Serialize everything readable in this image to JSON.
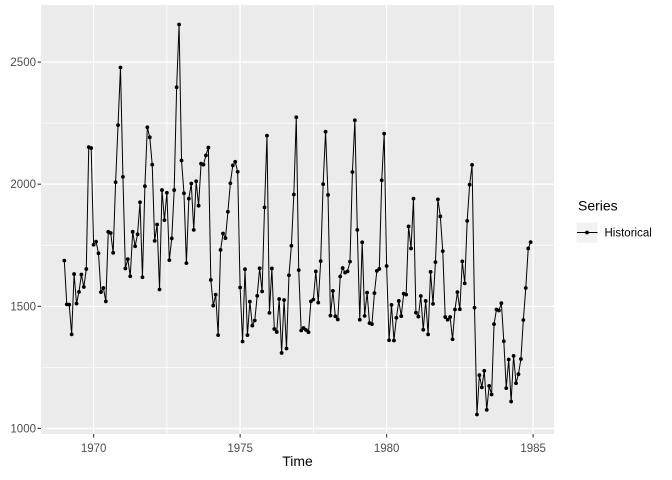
{
  "theme": {
    "page_bg": "#FFFFFF",
    "panel_bg": "#EBEBEB",
    "grid_color": "#FFFFFF",
    "tick_mark_color": "#333333",
    "axis_text_color": "#4D4D4D",
    "title_text_color": "#000000",
    "series_color": "#000000",
    "legend_key_bg": "#F2F2F2"
  },
  "chart_data": {
    "type": "line",
    "title": "",
    "xlabel": "Time",
    "ylabel": "",
    "grid": true,
    "marker": "point",
    "legend": {
      "title": "Series",
      "position": "right",
      "entries": [
        {
          "label": "Historical"
        }
      ]
    },
    "xlim": [
      1968.204,
      1985.713
    ],
    "ylim": [
      977.15,
      2733.85
    ],
    "x_ticks": {
      "labels": [
        "1970",
        "1975",
        "1980",
        "1985"
      ],
      "values": [
        1970,
        1975,
        1980,
        1985
      ],
      "minor": [
        1972.5,
        1977.5,
        1982.5
      ]
    },
    "y_ticks": {
      "labels": [
        "1000",
        "1500",
        "2000",
        "2500"
      ],
      "values": [
        1000,
        1500,
        2000,
        2500
      ],
      "minor": [
        1250,
        1750,
        2250
      ]
    },
    "x_start": 1969,
    "points_per_year": 12,
    "series": [
      {
        "name": "Historical",
        "values": [
          1687,
          1508,
          1507,
          1385,
          1632,
          1511,
          1559,
          1630,
          1579,
          1653,
          2152,
          2148,
          1752,
          1765,
          1717,
          1558,
          1575,
          1520,
          1805,
          1800,
          1719,
          2008,
          2242,
          2478,
          2030,
          1655,
          1693,
          1623,
          1805,
          1746,
          1795,
          1926,
          1619,
          1992,
          2233,
          2192,
          2080,
          1768,
          1835,
          1569,
          1976,
          1853,
          1965,
          1689,
          1778,
          1976,
          2397,
          2654,
          2097,
          1963,
          1677,
          1941,
          2003,
          1813,
          2012,
          1912,
          2084,
          2080,
          2118,
          2150,
          1608,
          1503,
          1548,
          1382,
          1731,
          1798,
          1779,
          1887,
          2004,
          2077,
          2092,
          2051,
          1577,
          1356,
          1652,
          1382,
          1519,
          1421,
          1442,
          1543,
          1656,
          1561,
          1905,
          2199,
          1473,
          1655,
          1407,
          1395,
          1530,
          1309,
          1526,
          1327,
          1627,
          1748,
          1958,
          2274,
          1648,
          1401,
          1411,
          1403,
          1394,
          1520,
          1528,
          1643,
          1515,
          1685,
          2000,
          2215,
          1956,
          1462,
          1563,
          1459,
          1446,
          1622,
          1657,
          1638,
          1643,
          1683,
          2050,
          2262,
          1813,
          1445,
          1762,
          1461,
          1556,
          1431,
          1427,
          1554,
          1645,
          1653,
          2016,
          2207,
          1665,
          1361,
          1506,
          1360,
          1453,
          1522,
          1460,
          1552,
          1548,
          1827,
          1737,
          1941,
          1474,
          1458,
          1542,
          1404,
          1522,
          1385,
          1641,
          1510,
          1681,
          1938,
          1868,
          1726,
          1456,
          1445,
          1456,
          1365,
          1487,
          1558,
          1488,
          1684,
          1594,
          1850,
          1998,
          2079,
          1494,
          1057,
          1218,
          1168,
          1236,
          1076,
          1174,
          1139,
          1427,
          1487,
          1483,
          1513,
          1357,
          1165,
          1282,
          1110,
          1297,
          1185,
          1222,
          1284,
          1444,
          1575,
          1737,
          1763
        ]
      }
    ]
  }
}
